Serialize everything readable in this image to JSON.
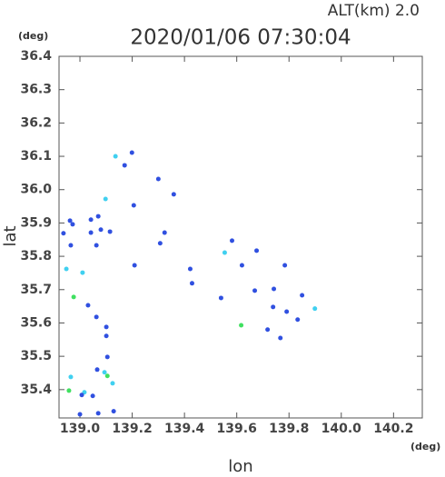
{
  "chart_data": {
    "type": "scatter",
    "header": "ALT(km)  2.0",
    "title": "2020/01/06 07:30:04",
    "y_unit": "(deg)",
    "x_unit": "(deg)",
    "xlabel": "lon",
    "ylabel": "lat",
    "xlim": [
      138.92,
      140.31
    ],
    "ylim": [
      35.315,
      36.4
    ],
    "xticks": [
      {
        "value": 139,
        "label": "139.0"
      },
      139.2,
      139.4,
      139.6,
      139.8,
      {
        "value": 140,
        "label": "140.0"
      },
      140.2
    ],
    "yticks": [
      35.4,
      35.5,
      35.6,
      35.7,
      35.8,
      35.9,
      {
        "value": 36,
        "label": "36.0"
      },
      36.1,
      36.2,
      36.3,
      36.4
    ],
    "x": [
      139.136,
      139.199,
      139.171,
      139.3,
      139.098,
      139.359,
      139.206,
      138.962,
      138.972,
      139.042,
      139.08,
      139.07,
      139.115,
      138.937,
      138.965,
      139.063,
      139.042,
      139.324,
      138.948,
      139.01,
      139.209,
      139.307,
      139.554,
      139.582,
      139.676,
      139.62,
      139.429,
      139.422,
      139.54,
      139.669,
      139.784,
      139.742,
      138.976,
      139.031,
      139.85,
      139.899,
      139.739,
      139.791,
      139.833,
      139.063,
      139.617,
      139.718,
      139.767,
      139.101,
      139.101,
      139.105,
      139.066,
      139.094,
      139.105,
      139.125,
      138.965,
      138.958,
      139.017,
      139.007,
      139.049,
      139.07,
      139.129,
      139.0
    ],
    "y": [
      36.1,
      36.111,
      36.073,
      36.032,
      35.972,
      35.986,
      35.953,
      35.907,
      35.896,
      35.91,
      35.88,
      35.92,
      35.874,
      35.869,
      35.833,
      35.833,
      35.871,
      35.871,
      35.762,
      35.751,
      35.773,
      35.839,
      35.811,
      35.847,
      35.817,
      35.773,
      35.719,
      35.762,
      35.675,
      35.697,
      35.773,
      35.702,
      35.678,
      35.653,
      35.683,
      35.643,
      35.648,
      35.634,
      35.61,
      35.618,
      35.593,
      35.58,
      35.555,
      35.561,
      35.588,
      35.498,
      35.46,
      35.452,
      35.441,
      35.419,
      35.438,
      35.397,
      35.392,
      35.384,
      35.381,
      35.329,
      35.335,
      35.326
    ],
    "point_colors": [
      "#40d0f0",
      "#3050e0",
      "#3050e0",
      "#3050e0",
      "#40d0f0",
      "#3050e0",
      "#3050e0",
      "#3050e0",
      "#3050e0",
      "#3050e0",
      "#3050e0",
      "#3050e0",
      "#3050e0",
      "#3050e0",
      "#3050e0",
      "#3050e0",
      "#3050e0",
      "#3050e0",
      "#40d0f0",
      "#40d0f0",
      "#3050e0",
      "#3050e0",
      "#40d0f0",
      "#3050e0",
      "#3050e0",
      "#3050e0",
      "#3050e0",
      "#3050e0",
      "#3050e0",
      "#3050e0",
      "#3050e0",
      "#3050e0",
      "#40e060",
      "#3050e0",
      "#3050e0",
      "#40d0f0",
      "#3050e0",
      "#3050e0",
      "#3050e0",
      "#3050e0",
      "#40e060",
      "#3050e0",
      "#3050e0",
      "#3050e0",
      "#3050e0",
      "#3050e0",
      "#3050e0",
      "#40d0f0",
      "#40e060",
      "#40d0f0",
      "#40d0f0",
      "#40e060",
      "#40d0f0",
      "#3050e0",
      "#3050e0",
      "#3050e0",
      "#3050e0",
      "#3050e0"
    ]
  }
}
